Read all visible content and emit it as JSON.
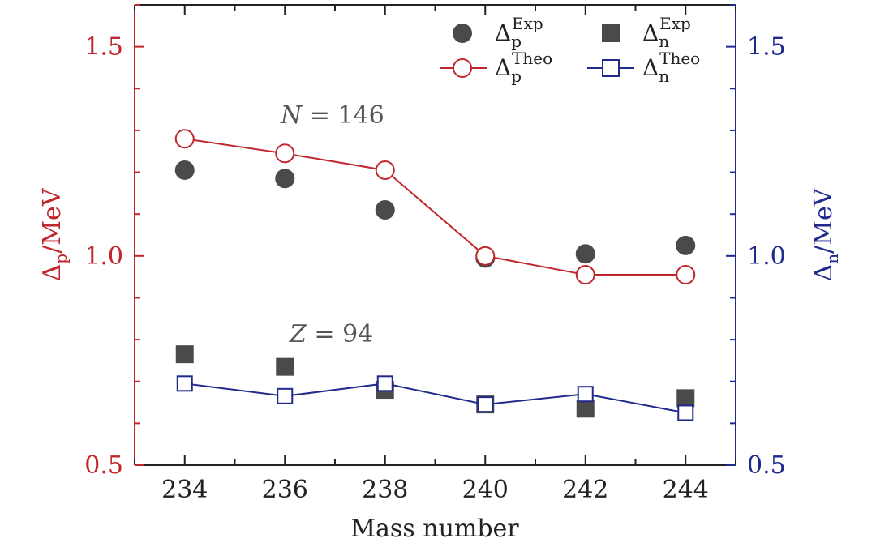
{
  "chart_data": {
    "type": "scatter",
    "title": "",
    "xlabel": "Mass number",
    "ylabel_left": {
      "symbol": "Δ",
      "sub": "p",
      "unit": "/MeV"
    },
    "ylabel_right": {
      "symbol": "Δ",
      "sub": "n",
      "unit": "/MeV"
    },
    "xlim": [
      233,
      245
    ],
    "ylim_left": [
      0.5,
      1.6
    ],
    "ylim_right": [
      0.5,
      1.6
    ],
    "x_ticks": [
      234,
      236,
      238,
      240,
      242,
      244
    ],
    "y_ticks_left": [
      "0.5",
      "1.0",
      "1.5"
    ],
    "y_ticks_right": [
      "0.5",
      "1.0",
      "1.5"
    ],
    "x": [
      234,
      236,
      238,
      240,
      242,
      244
    ],
    "series": [
      {
        "sup": "Exp",
        "sub": "p",
        "axis": "left",
        "marker": "filled-circle",
        "line": false,
        "color": "#4a4a4a",
        "values": [
          1.205,
          1.185,
          1.11,
          0.995,
          1.005,
          1.025
        ]
      },
      {
        "sup": "Theo",
        "sub": "p",
        "axis": "left",
        "marker": "open-circle",
        "line": true,
        "color": "#c0272d",
        "values": [
          1.28,
          1.245,
          1.205,
          1.0,
          0.955,
          0.955
        ]
      },
      {
        "sup": "Exp",
        "sub": "n",
        "axis": "right",
        "marker": "filled-square",
        "line": false,
        "color": "#4a4a4a",
        "values": [
          0.765,
          0.735,
          0.68,
          0.645,
          0.635,
          0.66
        ]
      },
      {
        "sup": "Theo",
        "sub": "n",
        "axis": "right",
        "marker": "open-square",
        "line": true,
        "color": "#1f2a8c",
        "values": [
          0.695,
          0.665,
          0.695,
          0.645,
          0.67,
          0.625
        ]
      }
    ],
    "annotations": [
      {
        "var": "N",
        "rest": " = 146",
        "x": 236.8,
        "y": 1.34
      },
      {
        "var": "Z",
        "rest": " = 94",
        "x": 236.8,
        "y": 0.79
      }
    ],
    "legend_position": "top-right",
    "grid": false,
    "colors": {
      "left_axis": "#c0272d",
      "right_axis": "#1f2a8c",
      "exp_marker": "#4a4a4a"
    }
  }
}
